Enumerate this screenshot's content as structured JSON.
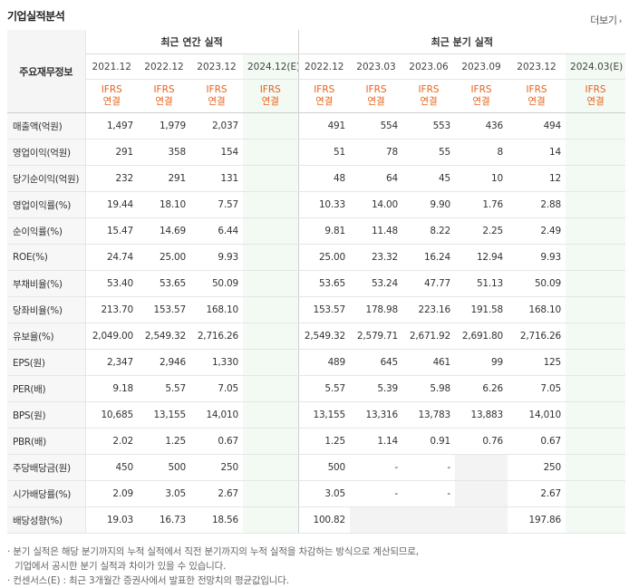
{
  "title": "기업실적분석",
  "more_label": "더보기",
  "header": {
    "row_label": "주요재무정보",
    "annual_title": "최근 연간 실적",
    "quarter_title": "최근 분기 실적",
    "annual_periods": [
      "2021.12",
      "2022.12",
      "2023.12",
      "2024.12(E)"
    ],
    "quarter_periods": [
      "2022.12",
      "2023.03",
      "2023.06",
      "2023.09",
      "2023.12",
      "2024.03(E)"
    ],
    "ifrs_line1": "IFRS",
    "ifrs_line2": "연결"
  },
  "rows": [
    {
      "label": "매출액(억원)",
      "annual": [
        "1,497",
        "1,979",
        "2,037",
        ""
      ],
      "quarter": [
        "491",
        "554",
        "553",
        "436",
        "494",
        ""
      ]
    },
    {
      "label": "영업이익(억원)",
      "annual": [
        "291",
        "358",
        "154",
        ""
      ],
      "quarter": [
        "51",
        "78",
        "55",
        "8",
        "14",
        ""
      ]
    },
    {
      "label": "당기순이익(억원)",
      "annual": [
        "232",
        "291",
        "131",
        ""
      ],
      "quarter": [
        "48",
        "64",
        "45",
        "10",
        "12",
        ""
      ]
    },
    {
      "label": "영업이익률(%)",
      "annual": [
        "19.44",
        "18.10",
        "7.57",
        ""
      ],
      "quarter": [
        "10.33",
        "14.00",
        "9.90",
        "1.76",
        "2.88",
        ""
      ]
    },
    {
      "label": "순이익률(%)",
      "annual": [
        "15.47",
        "14.69",
        "6.44",
        ""
      ],
      "quarter": [
        "9.81",
        "11.48",
        "8.22",
        "2.25",
        "2.49",
        ""
      ]
    },
    {
      "label": "ROE(%)",
      "annual": [
        "24.74",
        "25.00",
        "9.93",
        ""
      ],
      "quarter": [
        "25.00",
        "23.32",
        "16.24",
        "12.94",
        "9.93",
        ""
      ]
    },
    {
      "label": "부채비율(%)",
      "annual": [
        "53.40",
        "53.65",
        "50.09",
        ""
      ],
      "quarter": [
        "53.65",
        "53.24",
        "47.77",
        "51.13",
        "50.09",
        ""
      ]
    },
    {
      "label": "당좌비율(%)",
      "annual": [
        "213.70",
        "153.57",
        "168.10",
        ""
      ],
      "quarter": [
        "153.57",
        "178.98",
        "223.16",
        "191.58",
        "168.10",
        ""
      ]
    },
    {
      "label": "유보율(%)",
      "annual": [
        "2,049.00",
        "2,549.32",
        "2,716.26",
        ""
      ],
      "quarter": [
        "2,549.32",
        "2,579.71",
        "2,671.92",
        "2,691.80",
        "2,716.26",
        ""
      ]
    },
    {
      "label": "EPS(원)",
      "annual": [
        "2,347",
        "2,946",
        "1,330",
        ""
      ],
      "quarter": [
        "489",
        "645",
        "461",
        "99",
        "125",
        ""
      ]
    },
    {
      "label": "PER(배)",
      "annual": [
        "9.18",
        "5.57",
        "7.05",
        ""
      ],
      "quarter": [
        "5.57",
        "5.39",
        "5.98",
        "6.26",
        "7.05",
        ""
      ]
    },
    {
      "label": "BPS(원)",
      "annual": [
        "10,685",
        "13,155",
        "14,010",
        ""
      ],
      "quarter": [
        "13,155",
        "13,316",
        "13,783",
        "13,883",
        "14,010",
        ""
      ]
    },
    {
      "label": "PBR(배)",
      "annual": [
        "2.02",
        "1.25",
        "0.67",
        ""
      ],
      "quarter": [
        "1.25",
        "1.14",
        "0.91",
        "0.76",
        "0.67",
        ""
      ]
    },
    {
      "label": "주당배당금(원)",
      "annual": [
        "450",
        "500",
        "250",
        ""
      ],
      "quarter": [
        "500",
        "-",
        "-",
        "",
        "250",
        ""
      ]
    },
    {
      "label": "시가배당률(%)",
      "annual": [
        "2.09",
        "3.05",
        "2.67",
        ""
      ],
      "quarter": [
        "3.05",
        "-",
        "-",
        "",
        "2.67",
        ""
      ]
    },
    {
      "label": "배당성향(%)",
      "annual": [
        "19.03",
        "16.73",
        "18.56",
        ""
      ],
      "quarter": [
        "100.82",
        "",
        "",
        "",
        "197.86",
        ""
      ]
    }
  ],
  "notes": {
    "line1": "· 분기 실적은 해당 분기까지의 누적 실적에서 직전 분기까지의 누적 실적을 차감하는 방식으로 계산되므로,",
    "line2": "기업에서 공시한 분기 실적과 차이가 있을 수 있습니다.",
    "line3": "· 컨센서스(E) : 최근 3개월간 증권사에서 발표한 전망치의 평균값입니다."
  },
  "colors": {
    "ifrs": "#e8621a",
    "estimate_bg": "#f3f9f3",
    "label_bg": "#f7f7f7"
  }
}
